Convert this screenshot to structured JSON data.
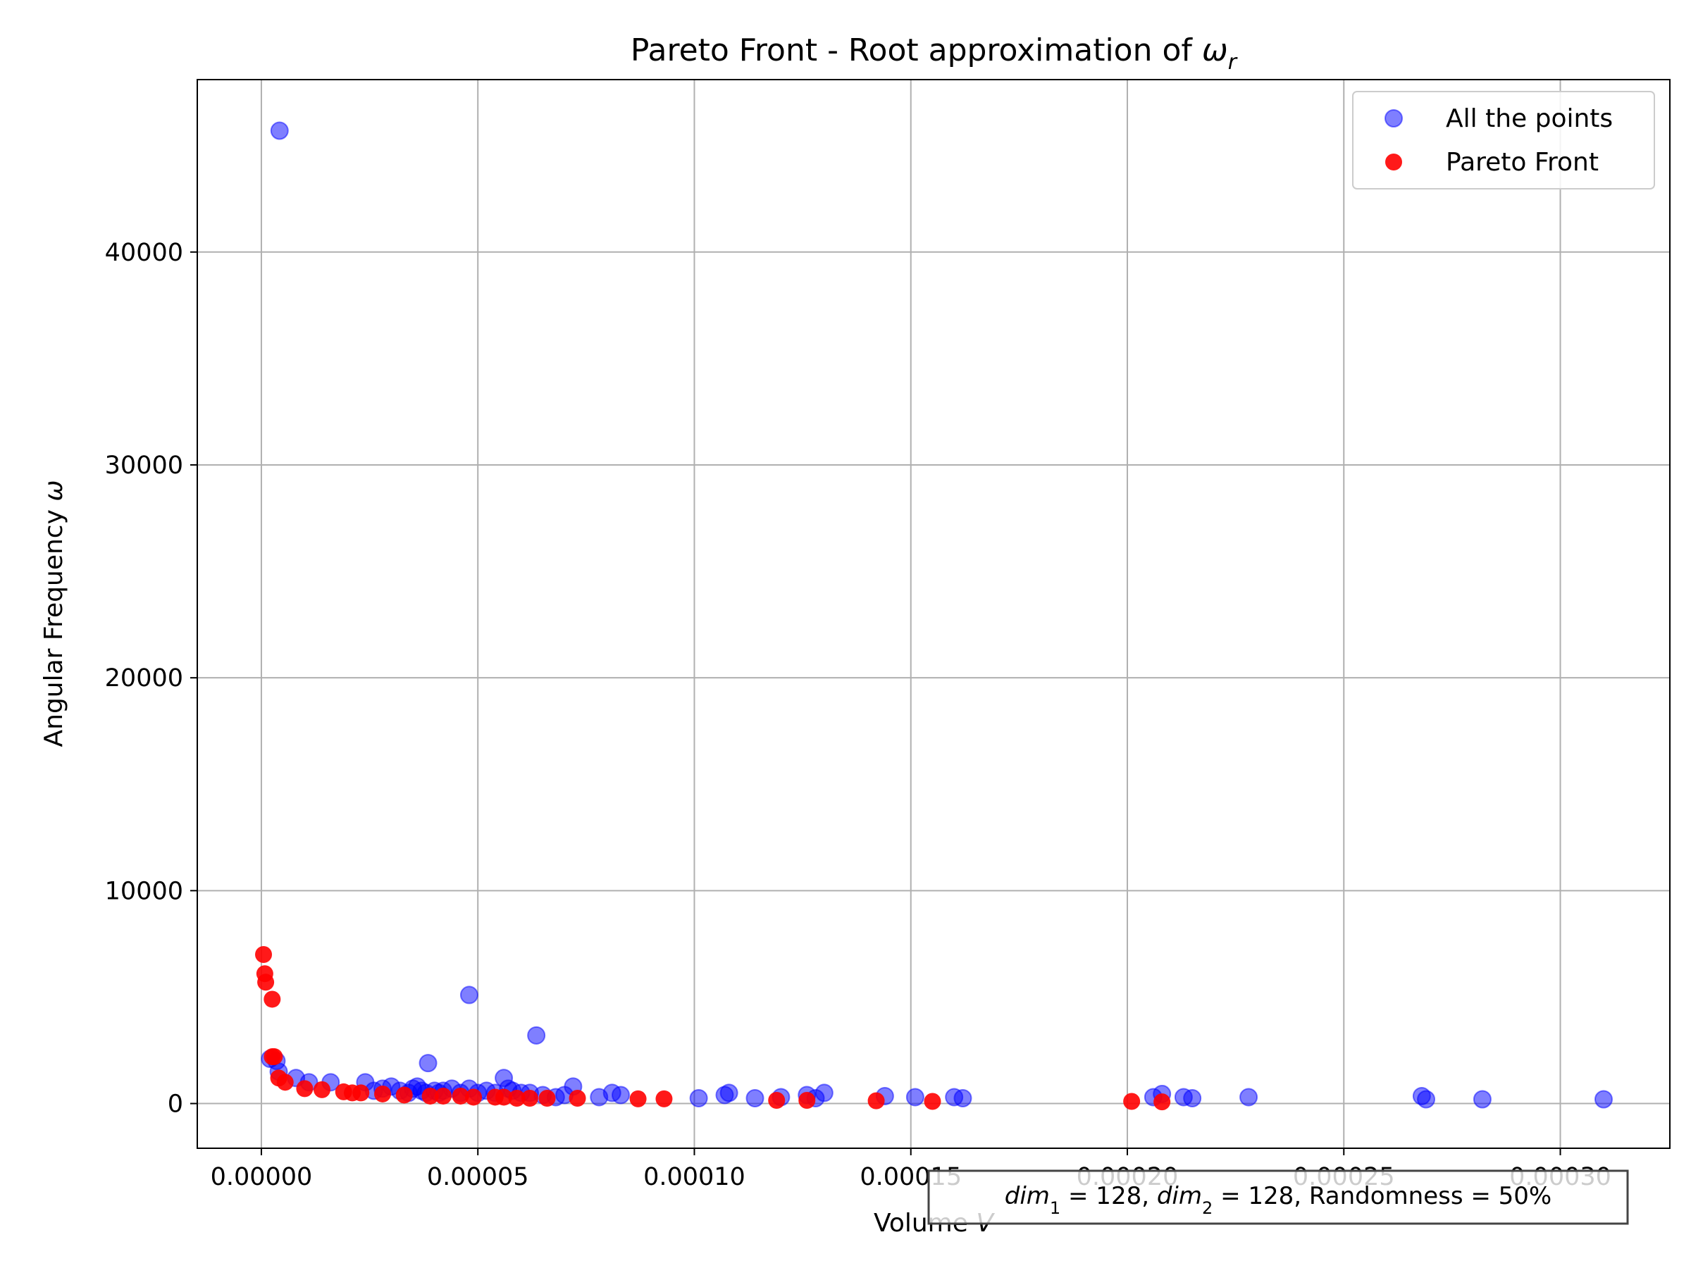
{
  "chart_data": {
    "type": "scatter",
    "title": "Pareto Front - Root approximation of ",
    "title_math": "ω",
    "title_math_sub": "r",
    "xlabel": "Volume ",
    "xlabel_math": "V",
    "ylabel": "Angular Frequency ",
    "ylabel_math": "ω",
    "xlim": [
      -1.48e-05,
      0.0003253
    ],
    "ylim": [
      -2100,
      48100
    ],
    "x_ticks": [
      0,
      5e-05,
      0.0001,
      0.00015,
      0.0002,
      0.00025,
      0.0003
    ],
    "x_tick_labels": [
      "0.00000",
      "0.00005",
      "0.00010",
      "0.00015",
      "0.00020",
      "0.00025",
      "0.00030"
    ],
    "y_ticks": [
      0,
      10000,
      20000,
      30000,
      40000
    ],
    "y_tick_labels": [
      "0",
      "10000",
      "20000",
      "30000",
      "40000"
    ],
    "grid": true,
    "legend_position": "top-right",
    "annotation": {
      "parts": [
        {
          "t": "dim",
          "italic": true
        },
        {
          "t": "1",
          "sub": true
        },
        {
          "t": " = 128, "
        },
        {
          "t": "dim",
          "italic": true
        },
        {
          "t": "2",
          "sub": true
        },
        {
          "t": " = 128, Randomness = 50%"
        }
      ]
    },
    "series": [
      {
        "name": "All the points",
        "color": "#0000ff",
        "alpha": 0.5,
        "points": [
          [
            4.2e-06,
            45700
          ],
          [
            2e-06,
            2100
          ],
          [
            3.5e-06,
            2000
          ],
          [
            4e-06,
            1500
          ],
          [
            8e-06,
            1200
          ],
          [
            1.1e-05,
            1000
          ],
          [
            1.6e-05,
            1000
          ],
          [
            2.4e-05,
            1000
          ],
          [
            2.6e-05,
            600
          ],
          [
            2.8e-05,
            700
          ],
          [
            3e-05,
            800
          ],
          [
            3.2e-05,
            600
          ],
          [
            3.4e-05,
            500
          ],
          [
            3.5e-05,
            700
          ],
          [
            3.6e-05,
            800
          ],
          [
            3.7e-05,
            600
          ],
          [
            3.8e-05,
            500
          ],
          [
            3.85e-05,
            1900
          ],
          [
            4e-05,
            600
          ],
          [
            4.1e-05,
            500
          ],
          [
            4.2e-05,
            600
          ],
          [
            4.4e-05,
            700
          ],
          [
            4.6e-05,
            500
          ],
          [
            4.8e-05,
            700
          ],
          [
            4.8e-05,
            5100
          ],
          [
            5e-05,
            500
          ],
          [
            5.2e-05,
            600
          ],
          [
            5.4e-05,
            500
          ],
          [
            5.6e-05,
            1200
          ],
          [
            5.7e-05,
            700
          ],
          [
            5.8e-05,
            600
          ],
          [
            6e-05,
            500
          ],
          [
            6.2e-05,
            500
          ],
          [
            6.35e-05,
            3200
          ],
          [
            6.5e-05,
            400
          ],
          [
            6.8e-05,
            300
          ],
          [
            7e-05,
            400
          ],
          [
            7.2e-05,
            800
          ],
          [
            7.8e-05,
            300
          ],
          [
            8.1e-05,
            500
          ],
          [
            8.3e-05,
            400
          ],
          [
            0.000101,
            250
          ],
          [
            0.000107,
            400
          ],
          [
            0.000108,
            500
          ],
          [
            0.000114,
            250
          ],
          [
            0.00012,
            300
          ],
          [
            0.000126,
            400
          ],
          [
            0.000128,
            250
          ],
          [
            0.00013,
            500
          ],
          [
            0.000144,
            350
          ],
          [
            0.000151,
            300
          ],
          [
            0.00016,
            300
          ],
          [
            0.000162,
            250
          ],
          [
            0.000206,
            300
          ],
          [
            0.000208,
            450
          ],
          [
            0.000213,
            300
          ],
          [
            0.000215,
            250
          ],
          [
            0.000228,
            300
          ],
          [
            0.000268,
            350
          ],
          [
            0.000269,
            200
          ],
          [
            0.000282,
            200
          ],
          [
            0.00031,
            200
          ]
        ]
      },
      {
        "name": "Pareto Front",
        "color": "#ff0000",
        "alpha": 0.9,
        "points": [
          [
            5e-07,
            7000
          ],
          [
            8e-07,
            6100
          ],
          [
            1e-06,
            5700
          ],
          [
            2.5e-06,
            4900
          ],
          [
            2.5e-06,
            2200
          ],
          [
            3e-06,
            2200
          ],
          [
            4e-06,
            1200
          ],
          [
            5.5e-06,
            1000
          ],
          [
            1e-05,
            700
          ],
          [
            1.4e-05,
            650
          ],
          [
            1.9e-05,
            550
          ],
          [
            2.1e-05,
            500
          ],
          [
            2.3e-05,
            500
          ],
          [
            2.8e-05,
            450
          ],
          [
            3.3e-05,
            400
          ],
          [
            3.9e-05,
            350
          ],
          [
            4.2e-05,
            350
          ],
          [
            4.6e-05,
            350
          ],
          [
            4.9e-05,
            300
          ],
          [
            5.4e-05,
            300
          ],
          [
            5.6e-05,
            300
          ],
          [
            5.9e-05,
            250
          ],
          [
            6.2e-05,
            250
          ],
          [
            6.6e-05,
            250
          ],
          [
            7.3e-05,
            250
          ],
          [
            8.7e-05,
            220
          ],
          [
            9.3e-05,
            220
          ],
          [
            0.000119,
            150
          ],
          [
            0.000126,
            150
          ],
          [
            0.000142,
            130
          ],
          [
            0.000155,
            100
          ],
          [
            0.000201,
            100
          ],
          [
            0.000208,
            80
          ]
        ]
      }
    ]
  }
}
